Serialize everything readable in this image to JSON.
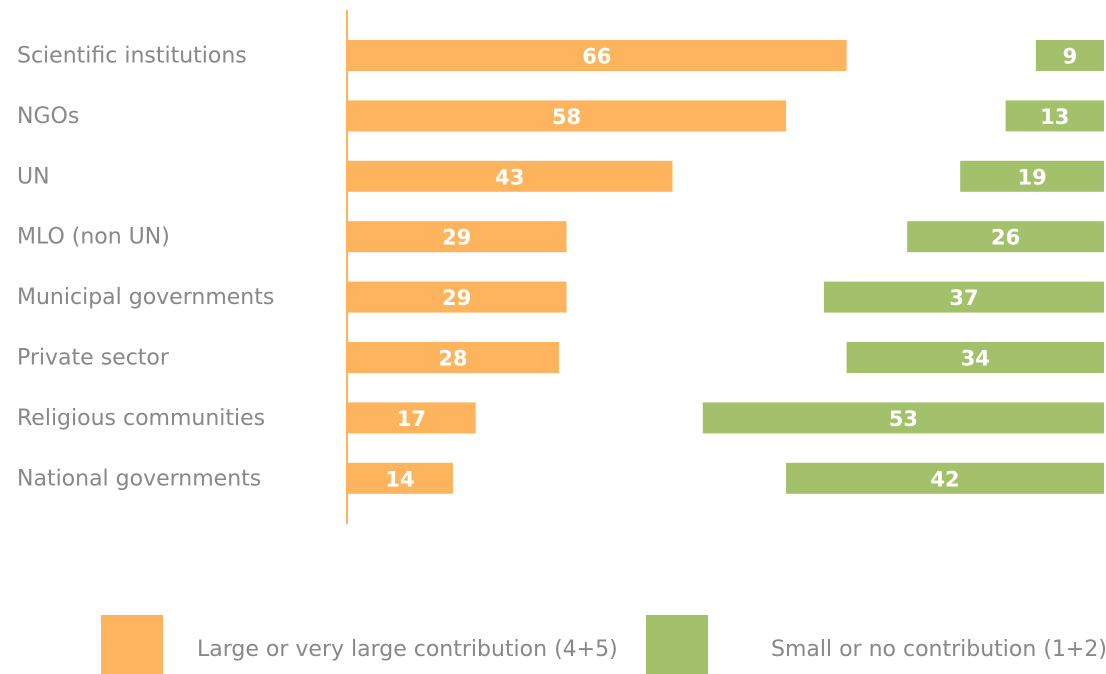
{
  "chart_data": {
    "type": "bar",
    "orientation": "horizontal",
    "categories": [
      "Scientific institutions",
      "NGOs",
      "UN",
      "MLO (non UN)",
      "Municipal governments",
      "Private sector",
      "Religious communities",
      "National governments"
    ],
    "series": [
      {
        "name": "Large or very large contribution (4+5)",
        "color": "#fdb45c",
        "values": [
          66,
          58,
          43,
          29,
          29,
          28,
          17,
          14
        ]
      },
      {
        "name": "Small or no contribution (1+2)",
        "color": "#a3c16a",
        "values": [
          9,
          13,
          19,
          26,
          37,
          34,
          53,
          42
        ]
      }
    ],
    "title": "",
    "xlabel": "",
    "ylabel": "",
    "axis_color": "#fdb45c",
    "data_labels": true,
    "legend_position": "bottom"
  }
}
